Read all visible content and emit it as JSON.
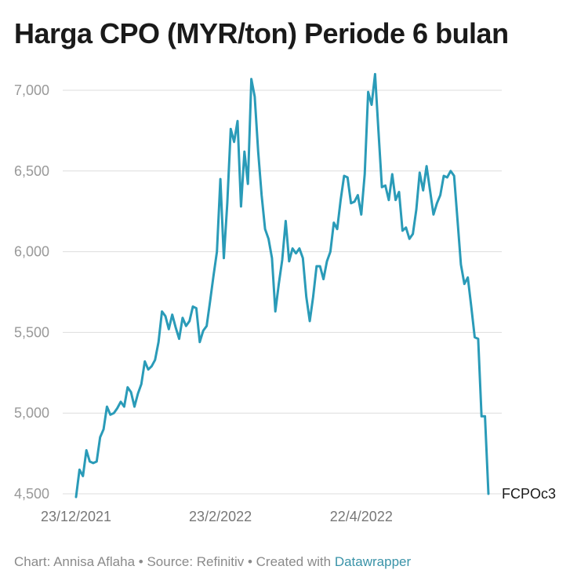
{
  "title": "Harga CPO (MYR/ton) Periode 6 bulan",
  "footer": {
    "chart_label": "Chart: Annisa Aflaha",
    "sep1": " • ",
    "source_label": "Source: Refinitiv",
    "sep2": " • ",
    "created_label": "Created with ",
    "tool": "Datawrapper"
  },
  "colors": {
    "line": "#2a9bb8",
    "grid": "#dddddd",
    "tick_text": "#999999",
    "end_label": "#1a1a1a"
  },
  "chart_data": {
    "type": "line",
    "title": "Harga CPO (MYR/ton) Periode 6 bulan",
    "xlabel": "",
    "ylabel": "",
    "ylim": [
      4500,
      7000
    ],
    "yticks": [
      4500,
      5000,
      5500,
      6000,
      6500,
      7000
    ],
    "ytick_labels": [
      "4,500",
      "5,000",
      "5,500",
      "6,000",
      "6,500",
      "7,000"
    ],
    "xticks": [
      {
        "label": "23/12/2021",
        "index": 0
      },
      {
        "label": "23/2/2022",
        "index": 42
      },
      {
        "label": "22/4/2022",
        "index": 83
      }
    ],
    "grid": "horizontal",
    "series": [
      {
        "name": "FCPOc3",
        "values": [
          4480,
          4650,
          4610,
          4770,
          4700,
          4690,
          4700,
          4850,
          4900,
          5040,
          4990,
          5000,
          5030,
          5070,
          5040,
          5160,
          5130,
          5040,
          5120,
          5180,
          5320,
          5270,
          5290,
          5330,
          5440,
          5630,
          5600,
          5520,
          5610,
          5530,
          5460,
          5590,
          5540,
          5570,
          5660,
          5650,
          5440,
          5510,
          5540,
          5690,
          5850,
          6000,
          6450,
          5960,
          6300,
          6760,
          6680,
          6810,
          6280,
          6620,
          6420,
          7070,
          6960,
          6620,
          6350,
          6140,
          6080,
          5960,
          5630,
          5800,
          5950,
          6190,
          5940,
          6020,
          5990,
          6020,
          5960,
          5720,
          5570,
          5720,
          5910,
          5910,
          5830,
          5940,
          6000,
          6180,
          6140,
          6320,
          6470,
          6460,
          6300,
          6310,
          6350,
          6230,
          6480,
          6990,
          6910,
          7100,
          6750,
          6400,
          6410,
          6320,
          6480,
          6320,
          6370,
          6130,
          6150,
          6080,
          6110,
          6260,
          6490,
          6380,
          6530,
          6380,
          6230,
          6300,
          6350,
          6470,
          6460,
          6500,
          6470,
          6200,
          5920,
          5800,
          5840,
          5660,
          5470,
          5460,
          4980,
          4980,
          4500
        ]
      }
    ],
    "end_label": "FCPOc3"
  }
}
